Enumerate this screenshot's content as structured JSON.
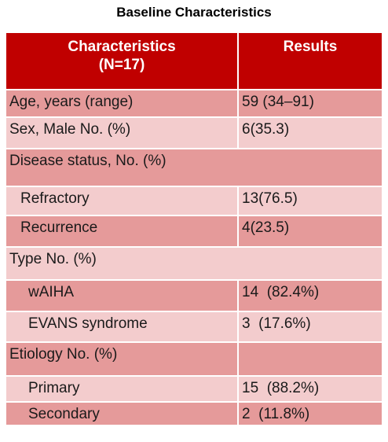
{
  "title": "Baseline Characteristics",
  "header": {
    "col1_line1": "Characteristics",
    "col1_line2": "(N=17)",
    "col2": "Results"
  },
  "rows": [
    {
      "label": "Age, years (range)",
      "value": "59 (34–91)"
    },
    {
      "label": "Sex, Male No. (%)",
      "value": "6(35.3)"
    },
    {
      "label": "Disease status, No. (%)",
      "value": ""
    },
    {
      "label": "Refractory",
      "value": "13(76.5)"
    },
    {
      "label": "Recurrence",
      "value": "4(23.5)"
    },
    {
      "label": "Type No. (%)",
      "value": ""
    },
    {
      "label": "wAIHA",
      "value": "14  (82.4%)"
    },
    {
      "label": "EVANS syndrome",
      "value": "3  (17.6%)"
    },
    {
      "label": "Etiology No. (%)",
      "value": ""
    },
    {
      "label": "Primary",
      "value": "15  (88.2%)"
    },
    {
      "label": "Secondary",
      "value": "2  (11.8%)"
    }
  ]
}
